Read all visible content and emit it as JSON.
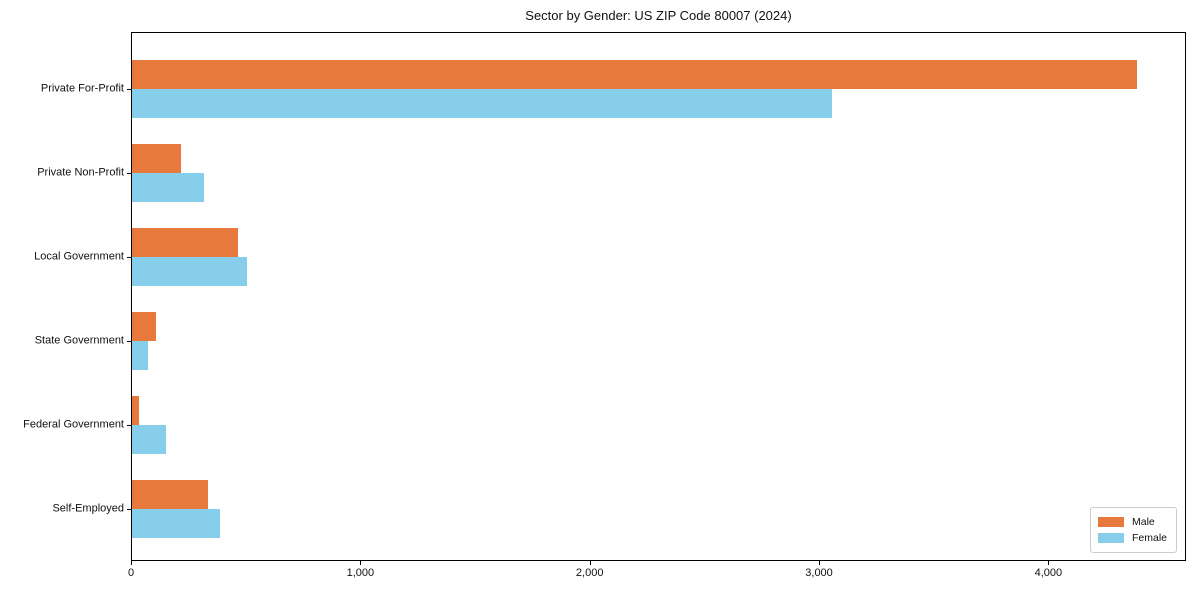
{
  "figure": {
    "title": "Sector by Gender: US ZIP Code 80007 (2024)"
  },
  "chart_data": {
    "type": "bar",
    "orientation": "horizontal",
    "title": "Sector by Gender: US ZIP Code 80007 (2024)",
    "categories": [
      "Private For-Profit",
      "Private Non-Profit",
      "Local Government",
      "State Government",
      "Federal Government",
      "Self-Employed"
    ],
    "series": [
      {
        "name": "Male",
        "color": "#E8793C",
        "values": [
          4380,
          215,
          460,
          105,
          29,
          330
        ]
      },
      {
        "name": "Female",
        "color": "#87CEEB",
        "values": [
          3050,
          315,
          500,
          70,
          148,
          385
        ]
      }
    ],
    "xlabel": "",
    "ylabel": "",
    "xlim": [
      0,
      4600
    ],
    "x_ticks": [
      0,
      1000,
      2000,
      3000,
      4000
    ],
    "x_tick_labels": [
      "0",
      "1,000",
      "2,000",
      "3,000",
      "4,000"
    ],
    "legend": {
      "position": "lower-right",
      "entries": [
        "Male",
        "Female"
      ]
    },
    "grid": false,
    "axis_color": "#000000",
    "background": "#ffffff"
  }
}
